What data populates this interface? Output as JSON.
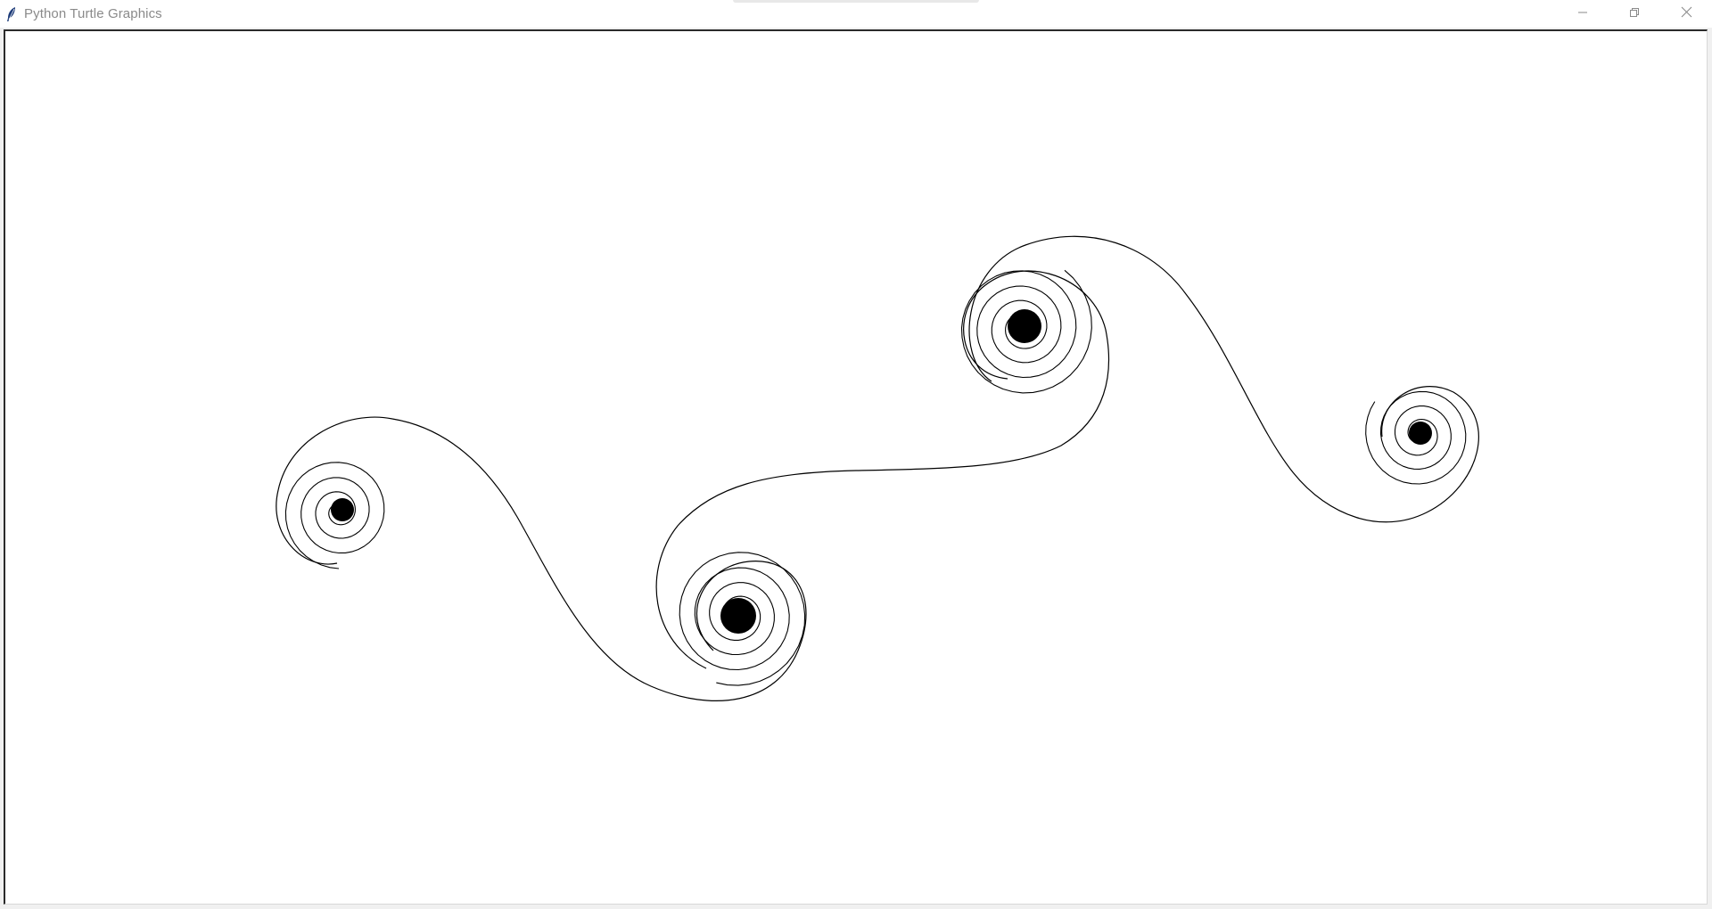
{
  "window": {
    "title": "Python Turtle Graphics",
    "icon": "feather-icon",
    "controls": [
      "minimize-icon",
      "restore-icon",
      "close-icon"
    ]
  },
  "canvas": {
    "background": "#ffffff",
    "pen_color": "#000000",
    "drawing": "double-spiral curve with four coiled spiral ends"
  }
}
